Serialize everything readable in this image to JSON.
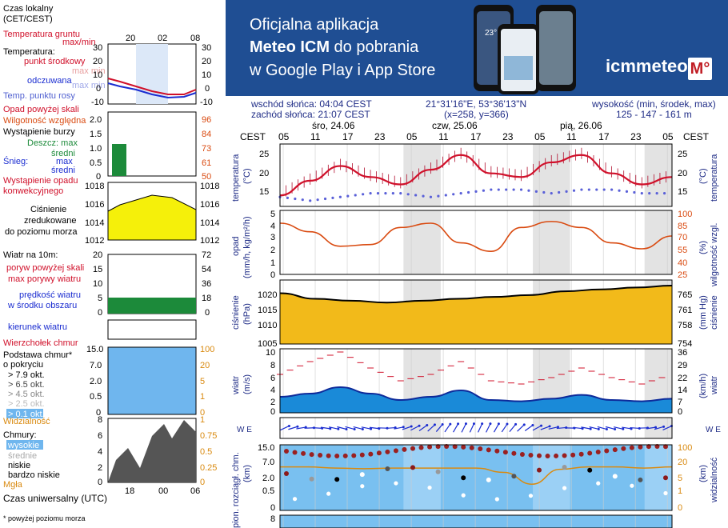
{
  "banner": {
    "line1_pre": "Oficjalna aplikacja",
    "line2_bold": "Meteo ICM",
    "line2_post": " do pobrania",
    "line3": "w Google Play i App Store",
    "logo_text": "icmmeteo",
    "logo_badge": "M°",
    "phone_temp": "23°"
  },
  "header": {
    "sunrise": "wschód słońca: 04:04 CEST",
    "sunset": "zachód słońca: 21:07 CEST",
    "coords": "21°31'16\"E, 53°36'13\"N",
    "grid": "(x=258,  y=366)",
    "height_label": "wysokość (min, środek, max)",
    "height_values": "125 - 147 - 161 m"
  },
  "legend": {
    "local_time": "Czas lokalny",
    "local_time2": "(CET/CEST)",
    "local_ticks": [
      "20",
      "02",
      "08"
    ],
    "soil_temp": "Temperatura gruntu",
    "soil_maxmin": "max/min",
    "temperature": "Temperatura:",
    "mid_point": "punkt środkowy",
    "max_min": "max min",
    "feels_like": "odczuwana",
    "feels_maxmin": "max min",
    "dew_point": "Temp. punktu rosy",
    "temp_ticks_left": [
      "30",
      "20",
      "10",
      "0",
      "-10"
    ],
    "temp_ticks_right": [
      "30",
      "20",
      "10",
      "0",
      "-10"
    ],
    "precip_above": "Opad powyżej skali",
    "humidity": "Wilgotność względna",
    "storm": "Wystąpienie burzy",
    "rain_max": "Deszcz: max",
    "rain_mean": "średni",
    "snow_max": "max",
    "snow_label": "Śnieg:",
    "snow_mean": "średni",
    "precip_occ": "Wystąpienie opadu",
    "convective": "konwekcyjnego",
    "precip_ticks_left": [
      "2.0",
      "1.5",
      "1.0",
      "0.5",
      "0"
    ],
    "precip_ticks_right": [
      "96",
      "84",
      "73",
      "61",
      "50"
    ],
    "pressure_l1": "Ciśnienie",
    "pressure_l2": "zredukowane",
    "pressure_l3": "do poziomu morza",
    "pressure_ticks_left": [
      "1018",
      "1016",
      "1014",
      "1012"
    ],
    "pressure_ticks_right": [
      "1018",
      "1016",
      "1014",
      "1012"
    ],
    "wind_at": "Wiatr na 10m:",
    "gust_above": "poryw powyżej skali",
    "gust_max": "max porywy wiatru",
    "wind_speed": "prędkość wiatru",
    "wind_area": "w środku obszaru",
    "wind_ticks_left": [
      "20",
      "15",
      "10",
      "5",
      "0"
    ],
    "wind_ticks_right": [
      "72",
      "54",
      "36",
      "18",
      "0"
    ],
    "wind_dir": "kierunek wiatru",
    "cloud_top": "Wierzchołek chmur",
    "cloud_base1": "Podstawa chmur*",
    "cloud_base2": "o pokryciu",
    "okt1": "> 7.9 okt.",
    "okt2": "> 6.5 okt.",
    "okt3": "> 4.5 okt.",
    "okt4": "> 2.5 okt.",
    "okt5": "> 0.1 okt.",
    "visibility": "Widzialność",
    "cloud_ticks_left": [
      "15.0",
      "7.0",
      "2.0",
      "0.5",
      "0"
    ],
    "cloud_ticks_right": [
      "100",
      "20",
      "5",
      "1",
      "0"
    ],
    "clouds": "Chmury:",
    "high": "wysokie",
    "medium": "średnie",
    "low": "niskie",
    "very_low": "bardzo niskie",
    "fog": "Mgła",
    "cov_ticks_left": [
      "8",
      "6",
      "4",
      "2",
      "0"
    ],
    "cov_ticks_right": [
      "1",
      "0.75",
      "0.5",
      "0.25",
      "0"
    ],
    "utc_ticks": [
      "18",
      "00",
      "06"
    ],
    "utc": "Czas uniwersalny (UTC)",
    "footnote": "* powyżej poziomu morza"
  },
  "main": {
    "tz": "CEST",
    "days": [
      "śro, 24.06",
      "czw, 25.06",
      "pią, 26.06"
    ],
    "hours": [
      "05",
      "11",
      "17",
      "23",
      "05",
      "11",
      "17",
      "23",
      "05",
      "11",
      "17",
      "23",
      "05"
    ],
    "temp_label_l": "temperatura",
    "temp_unit_l": "(°C)",
    "temp_label_r": "temperatura",
    "temp_unit_r": "(°C)",
    "temp_ticks": [
      "25",
      "20",
      "15"
    ],
    "precip_label_l": "opad",
    "precip_unit_l": "(mm/h, kg/m²/h)",
    "precip_label_r": "wilgotność wzgl.",
    "precip_unit_r": "(%)",
    "precip_ticks_l": [
      "5",
      "4",
      "3",
      "2",
      "1",
      "0"
    ],
    "precip_ticks_r": [
      "100",
      "85",
      "70",
      "55",
      "40",
      "25"
    ],
    "press_label_l": "ciśnienie",
    "press_unit_l": "(hPa)",
    "press_label_r": "ciśnienie",
    "press_unit_r": "(mm Hg)",
    "press_ticks_l": [
      "1020",
      "1015",
      "1010",
      "1005"
    ],
    "press_ticks_r": [
      "765",
      "761",
      "758",
      "754"
    ],
    "wind_label_l": "wiatr",
    "wind_unit_l": "(m/s)",
    "wind_label_r": "wiatr",
    "wind_unit_r": "(km/h)",
    "wind_ticks_l": [
      "10",
      "8",
      "6",
      "4",
      "2",
      "0"
    ],
    "wind_ticks_r": [
      "36",
      "29",
      "22",
      "14",
      "7",
      "0"
    ],
    "dir_l": "W E",
    "cloud_label_l": "pion. rozciągł. chm.",
    "cloud_unit_l": "(km)",
    "cloud_label_r": "widzialność",
    "cloud_unit_r": "(km)",
    "cloud_ticks_l": [
      "15.0",
      "7.0",
      "2.0",
      "0.5",
      "0"
    ],
    "cloud_ticks_r": [
      "100",
      "20",
      "5",
      "1",
      "0"
    ],
    "bottom_tick": "8"
  },
  "colors": {
    "banner": "#1f4e93",
    "temp": "#d0102a",
    "humidity": "#d94a10",
    "pressure_fill": "#f2ba1a",
    "wind": "#1f5fb8",
    "axis_text": "#1f2c86"
  },
  "chart_data": {
    "type": "line",
    "x": [
      "05",
      "11",
      "17",
      "23",
      "05",
      "11",
      "17",
      "23",
      "05",
      "11",
      "17",
      "23",
      "05"
    ],
    "series": [],
    "temperature_c": [
      14,
      18,
      22,
      19,
      17,
      21,
      25,
      20,
      19,
      23,
      25,
      20,
      17,
      19
    ],
    "dew_point_c": [
      14,
      13,
      14,
      15,
      15,
      14,
      15,
      16,
      16,
      15,
      16,
      16,
      15,
      15
    ],
    "humidity_pct": [
      85,
      75,
      58,
      60,
      80,
      85,
      62,
      52,
      80,
      87,
      80,
      62,
      55,
      70
    ],
    "pressure_hpa": [
      1018.5,
      1017,
      1016.5,
      1016,
      1016.5,
      1017,
      1017.5,
      1018,
      1019,
      1019.5,
      1020,
      1020.5
    ],
    "wind_ms": [
      2.5,
      3,
      4,
      3,
      2,
      2.5,
      3.5,
      2,
      1.8,
      2.2,
      2.8,
      2,
      1.8,
      2.2
    ],
    "gust_ms": [
      6,
      8,
      9.5,
      7,
      5,
      6,
      8,
      5,
      4.5,
      5.5,
      7,
      5.5,
      4.5,
      6
    ]
  }
}
